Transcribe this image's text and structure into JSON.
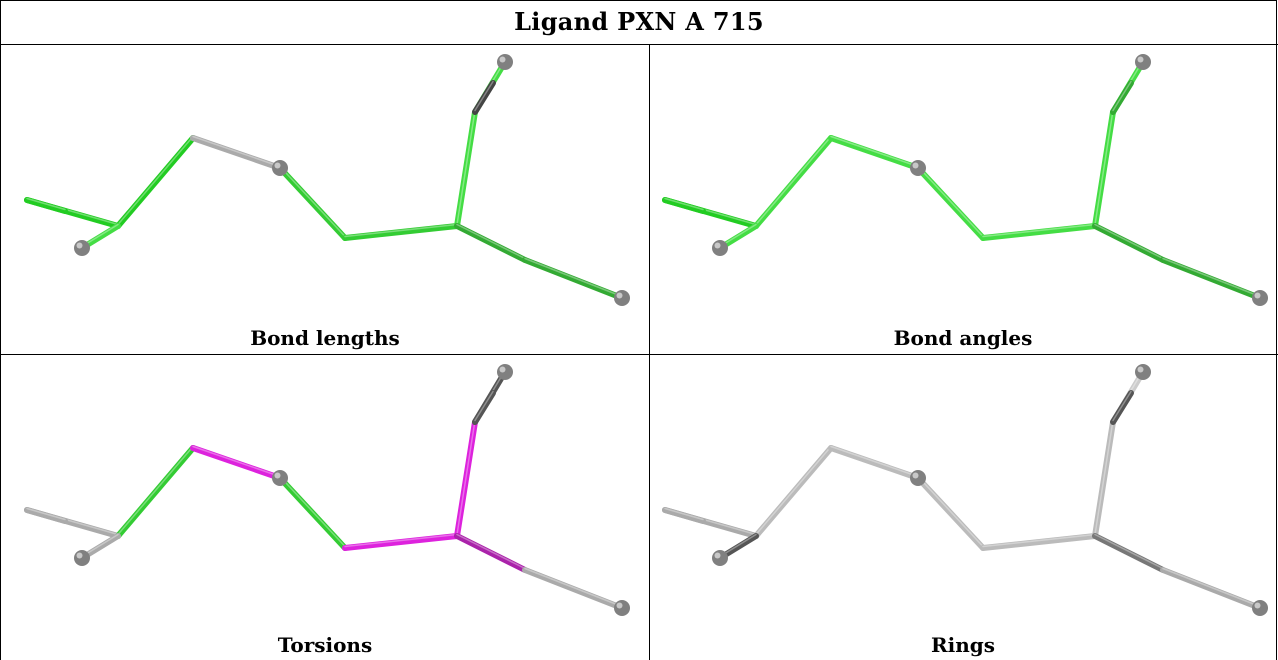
{
  "title": "Ligand PXN A 715",
  "panels": [
    {
      "caption": "Bond lengths",
      "colors": [
        "#22cc22",
        "#22cc22",
        "#aaaaaa",
        "#33cc33",
        "#33cc33",
        "#44dd44",
        "#44dd44",
        "#44dd44",
        "#33aa33",
        "#33aa33",
        "#22cc22",
        "#444444"
      ]
    },
    {
      "caption": "Bond angles",
      "colors": [
        "#22cc22",
        "#44dd44",
        "#44dd44",
        "#44dd44",
        "#44dd44",
        "#44dd44",
        "#44dd44",
        "#44dd44",
        "#33aa33",
        "#33aa33",
        "#22cc22",
        "#33aa33"
      ]
    },
    {
      "caption": "Torsions",
      "colors": [
        "#aaaaaa",
        "#33cc33",
        "#dd22dd",
        "#33cc33",
        "#dd22dd",
        "#dd22dd",
        "#555555",
        "#aaaaaa",
        "#aa22aa",
        "#aaaaaa",
        "#aaaaaa",
        "#555555"
      ]
    },
    {
      "caption": "Rings",
      "colors": [
        "#aaaaaa",
        "#bbbbbb",
        "#bbbbbb",
        "#bbbbbb",
        "#bbbbbb",
        "#bbbbbb",
        "#cccccc",
        "#555555",
        "#777777",
        "#aaaaaa",
        "#aaaaaa",
        "#555555"
      ]
    }
  ]
}
